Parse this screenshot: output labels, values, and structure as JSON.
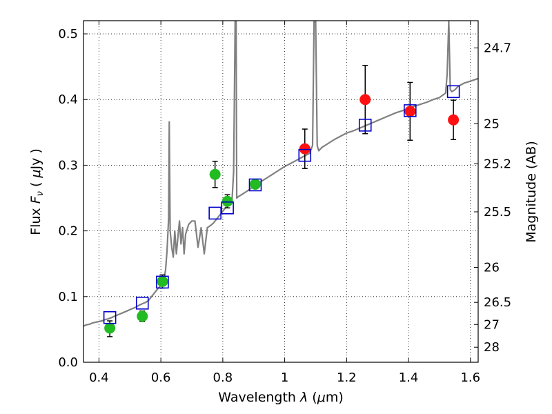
{
  "chart_data": {
    "type": "scatter",
    "xlabel_parts": [
      "Wavelength  ",
      "λ",
      " (",
      "μ",
      "m)"
    ],
    "ylabel_parts": [
      "Flux  ",
      "F",
      "ν",
      "  ( ",
      "μ",
      "Jy )"
    ],
    "right_ylabel": "Magnitude (AB)",
    "xlim": [
      0.35,
      1.625
    ],
    "ylim": [
      0.0,
      0.52
    ],
    "xticks": [
      0.4,
      0.6,
      0.8,
      1.0,
      1.2,
      1.4,
      1.6
    ],
    "xtick_labels": [
      "0.4",
      "0.6",
      "0.8",
      "1",
      "1.2",
      "1.4",
      "1.6"
    ],
    "yticks": [
      0.0,
      0.1,
      0.2,
      0.3,
      0.4,
      0.5
    ],
    "ytick_labels": [
      "0.0",
      "0.1",
      "0.2",
      "0.3",
      "0.4",
      "0.5"
    ],
    "right_ticks": [
      {
        "label": "24.7",
        "flux": 0.4785
      },
      {
        "label": "25",
        "flux": 0.363
      },
      {
        "label": "25.2",
        "flux": 0.302
      },
      {
        "label": "25.5",
        "flux": 0.229
      },
      {
        "label": "26",
        "flux": 0.1445
      },
      {
        "label": "26.5",
        "flux": 0.0912
      },
      {
        "label": "27",
        "flux": 0.0575
      },
      {
        "label": "28",
        "flux": 0.0229
      }
    ],
    "grid": true,
    "colors": {
      "model": "#808080",
      "green": "#22bb22",
      "red": "#ff1111",
      "square": "#0000cc",
      "errorbar": "#000000"
    },
    "series": [
      {
        "name": "model spectrum",
        "kind": "line",
        "color": "#808080",
        "x": [
          0.35,
          0.36,
          0.37,
          0.38,
          0.39,
          0.4,
          0.41,
          0.42,
          0.43,
          0.44,
          0.45,
          0.46,
          0.47,
          0.48,
          0.49,
          0.5,
          0.51,
          0.52,
          0.53,
          0.54,
          0.55,
          0.56,
          0.57,
          0.58,
          0.59,
          0.6,
          0.61,
          0.615,
          0.62,
          0.625,
          0.627,
          0.63,
          0.635,
          0.64,
          0.645,
          0.65,
          0.655,
          0.66,
          0.665,
          0.67,
          0.675,
          0.68,
          0.69,
          0.7,
          0.71,
          0.72,
          0.73,
          0.74,
          0.75,
          0.76,
          0.77,
          0.78,
          0.79,
          0.8,
          0.81,
          0.82,
          0.83,
          0.835,
          0.84,
          0.843,
          0.845,
          0.85,
          0.86,
          0.87,
          0.88,
          0.9,
          0.92,
          0.94,
          0.96,
          0.98,
          1.0,
          1.02,
          1.04,
          1.06,
          1.08,
          1.09,
          1.095,
          1.1,
          1.105,
          1.11,
          1.12,
          1.13,
          1.14,
          1.16,
          1.18,
          1.2,
          1.22,
          1.24,
          1.26,
          1.28,
          1.3,
          1.32,
          1.34,
          1.36,
          1.38,
          1.4,
          1.42,
          1.44,
          1.46,
          1.48,
          1.5,
          1.52,
          1.525,
          1.53,
          1.535,
          1.54,
          1.55,
          1.56,
          1.58,
          1.6,
          1.625
        ],
        "y": [
          0.055,
          0.057,
          0.058,
          0.06,
          0.061,
          0.062,
          0.063,
          0.065,
          0.066,
          0.068,
          0.07,
          0.072,
          0.074,
          0.076,
          0.078,
          0.08,
          0.082,
          0.084,
          0.087,
          0.089,
          0.091,
          0.094,
          0.1,
          0.106,
          0.112,
          0.117,
          0.126,
          0.14,
          0.17,
          0.22,
          0.366,
          0.2,
          0.175,
          0.16,
          0.2,
          0.165,
          0.19,
          0.215,
          0.18,
          0.205,
          0.165,
          0.195,
          0.21,
          0.215,
          0.215,
          0.175,
          0.205,
          0.165,
          0.205,
          0.208,
          0.212,
          0.218,
          0.224,
          0.23,
          0.236,
          0.242,
          0.247,
          0.29,
          0.52,
          0.52,
          0.25,
          0.252,
          0.255,
          0.258,
          0.261,
          0.268,
          0.274,
          0.28,
          0.286,
          0.292,
          0.298,
          0.303,
          0.308,
          0.313,
          0.318,
          0.33,
          0.52,
          0.52,
          0.33,
          0.322,
          0.327,
          0.33,
          0.333,
          0.339,
          0.344,
          0.349,
          0.352,
          0.356,
          0.36,
          0.364,
          0.368,
          0.372,
          0.376,
          0.38,
          0.383,
          0.386,
          0.39,
          0.393,
          0.396,
          0.4,
          0.403,
          0.41,
          0.44,
          0.52,
          0.415,
          0.412,
          0.415,
          0.42,
          0.425,
          0.428,
          0.432
        ]
      },
      {
        "name": "green points",
        "kind": "scatter",
        "marker": "circle",
        "color": "#22bb22",
        "points": [
          {
            "x": 0.435,
            "y": 0.052,
            "yerr": [
              0.039,
              0.063
            ]
          },
          {
            "x": 0.54,
            "y": 0.07,
            "yerr": [
              0.062,
              0.078
            ]
          },
          {
            "x": 0.605,
            "y": 0.123,
            "yerr": [
              0.113,
              0.133
            ]
          },
          {
            "x": 0.775,
            "y": 0.286,
            "yerr": [
              0.266,
              0.306
            ]
          },
          {
            "x": 0.815,
            "y": 0.245,
            "yerr": [
              0.235,
              0.255
            ]
          },
          {
            "x": 0.905,
            "y": 0.271,
            "yerr": null
          }
        ]
      },
      {
        "name": "red points",
        "kind": "scatter",
        "marker": "circle",
        "color": "#ff1111",
        "points": [
          {
            "x": 1.065,
            "y": 0.325,
            "yerr": [
              0.295,
              0.355
            ]
          },
          {
            "x": 1.26,
            "y": 0.4,
            "yerr": [
              0.348,
              0.452
            ]
          },
          {
            "x": 1.405,
            "y": 0.382,
            "yerr": [
              0.338,
              0.426
            ]
          },
          {
            "x": 1.545,
            "y": 0.369,
            "yerr": [
              0.339,
              0.399
            ]
          }
        ]
      },
      {
        "name": "model photometry",
        "kind": "scatter",
        "marker": "open-square",
        "color": "#0000cc",
        "points": [
          {
            "x": 0.435,
            "y": 0.068
          },
          {
            "x": 0.54,
            "y": 0.09
          },
          {
            "x": 0.605,
            "y": 0.122
          },
          {
            "x": 0.775,
            "y": 0.227
          },
          {
            "x": 0.815,
            "y": 0.235
          },
          {
            "x": 0.905,
            "y": 0.27
          },
          {
            "x": 1.065,
            "y": 0.315
          },
          {
            "x": 1.26,
            "y": 0.361
          },
          {
            "x": 1.405,
            "y": 0.383
          },
          {
            "x": 1.545,
            "y": 0.412
          }
        ]
      }
    ]
  }
}
